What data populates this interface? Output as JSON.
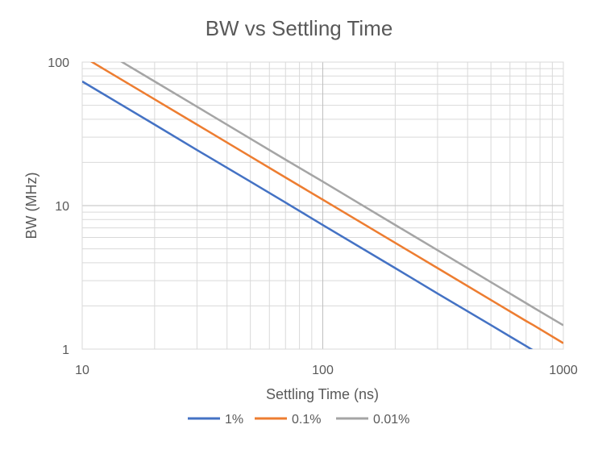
{
  "chart_data": {
    "type": "line",
    "title": "BW vs Settling Time",
    "xlabel": "Settling Time (ns)",
    "ylabel": "BW (MHz)",
    "xscale": "log",
    "yscale": "log",
    "xlim": [
      10,
      1000
    ],
    "ylim": [
      1,
      100
    ],
    "x_tick_labels": [
      "10",
      "100",
      "1000"
    ],
    "y_tick_labels": [
      "1",
      "10",
      "100"
    ],
    "grid": true,
    "legend_position": "bottom",
    "x": [
      10,
      20,
      30,
      50,
      70,
      100,
      200,
      300,
      500,
      700,
      750,
      1000
    ],
    "series": [
      {
        "name": "1%",
        "color": "#4472C4",
        "values": [
          73.3,
          36.7,
          24.4,
          14.7,
          10.5,
          7.33,
          3.67,
          2.44,
          1.47,
          1.05,
          0.98,
          0.733
        ]
      },
      {
        "name": "0.1%",
        "color": "#ED7D31",
        "values": [
          110,
          55.0,
          36.7,
          22.0,
          15.7,
          11.0,
          5.5,
          3.67,
          2.2,
          1.57,
          1.47,
          1.1
        ]
      },
      {
        "name": "0.01%",
        "color": "#A5A5A5",
        "values": [
          146.6,
          73.3,
          48.9,
          29.3,
          20.9,
          14.7,
          7.33,
          4.89,
          2.93,
          2.09,
          1.95,
          1.466
        ]
      }
    ]
  }
}
